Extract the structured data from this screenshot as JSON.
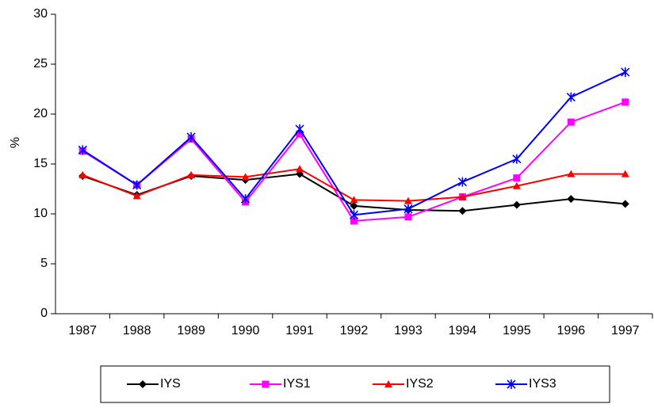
{
  "chart_data": {
    "type": "line",
    "y_label": "%",
    "categories": [
      "1987",
      "1988",
      "1989",
      "1990",
      "1991",
      "1992",
      "1993",
      "1994",
      "1995",
      "1996",
      "1997"
    ],
    "series": [
      {
        "name": "IYS",
        "color": "#000000",
        "marker": "diamond",
        "values": [
          13.8,
          11.9,
          13.8,
          13.4,
          14.0,
          10.8,
          10.4,
          10.3,
          10.9,
          11.5,
          11.0
        ]
      },
      {
        "name": "IYS1",
        "color": "#ff00ff",
        "marker": "square",
        "values": [
          16.3,
          12.9,
          17.5,
          11.2,
          18.0,
          9.3,
          9.7,
          11.7,
          13.6,
          19.2,
          21.2
        ]
      },
      {
        "name": "IYS2",
        "color": "#ff0000",
        "marker": "triangle",
        "values": [
          13.9,
          11.8,
          13.9,
          13.7,
          14.5,
          11.4,
          11.3,
          11.7,
          12.8,
          14.0,
          14.0
        ]
      },
      {
        "name": "IYS3",
        "color": "#0000ff",
        "marker": "asterisk",
        "values": [
          16.4,
          12.9,
          17.7,
          11.5,
          18.5,
          9.9,
          10.5,
          13.2,
          15.5,
          21.7,
          24.2
        ]
      }
    ],
    "ylim": [
      0,
      30
    ],
    "yticks": [
      0,
      5,
      10,
      15,
      20,
      25,
      30
    ],
    "grid": false,
    "legend": "bottom"
  }
}
